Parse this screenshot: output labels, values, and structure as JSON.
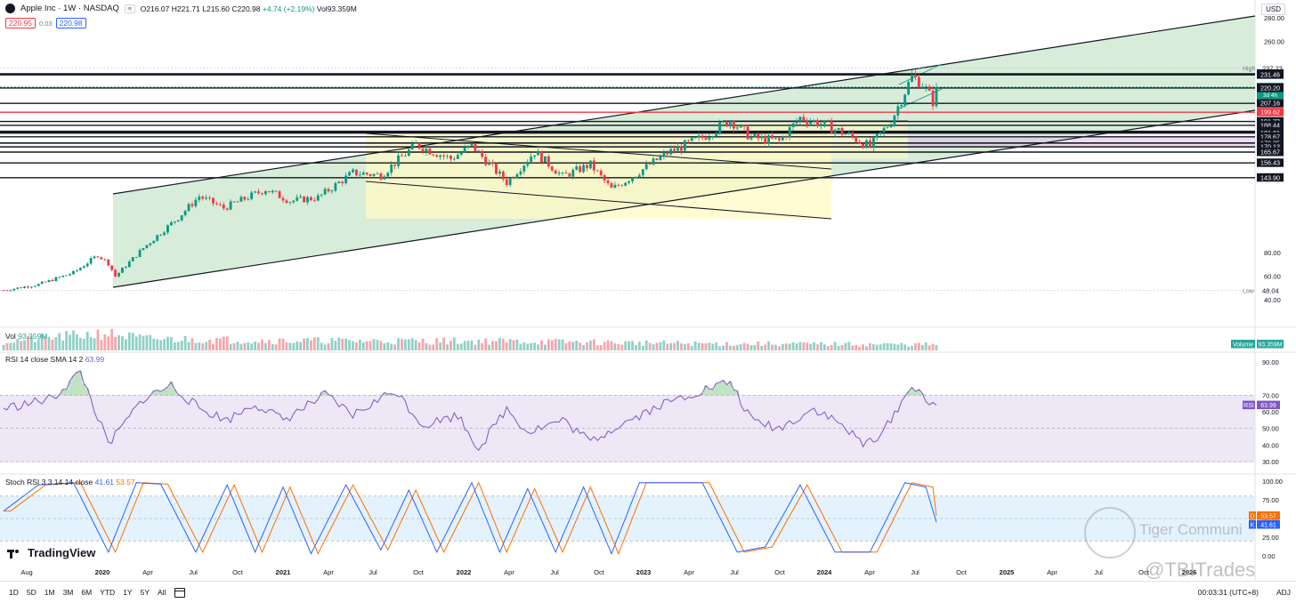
{
  "header": {
    "symbol_title": "Apple Inc · 1W · NASDAQ",
    "badge": "≋",
    "ohlc": {
      "open": "O216.07",
      "high": "H221.71",
      "low": "L215.60",
      "close": "C220.98",
      "change": "+4.74 (+2.19%)",
      "volume": "Vol93.359M"
    },
    "bid": "220.95",
    "spread": "0.03",
    "ask": "220.98",
    "currency": "USD"
  },
  "indicators": {
    "vol": {
      "label": "Vol",
      "value": "93.359M",
      "axis_tag": "Volume",
      "axis_value": "93.359M"
    },
    "rsi": {
      "label": "RSI 14 close SMA 14 2",
      "value": "63.99",
      "axis_tag": "RSI",
      "axis_value": "63.99"
    },
    "stoch": {
      "label": "Stoch RSI 3 3 14 14 close",
      "k": "41.61",
      "d": "53.57",
      "axis_k_tag": "K",
      "axis_d_tag": "D",
      "axis_k": "41.61",
      "axis_d": "53.57"
    }
  },
  "branding": {
    "name": "TradingView"
  },
  "watermark": {
    "community": "Tiger Communi",
    "handle": "@TBITrades"
  },
  "bottom_bar": {
    "ranges": [
      "1D",
      "5D",
      "1M",
      "3M",
      "6M",
      "YTD",
      "1Y",
      "5Y",
      "All"
    ],
    "clock": "00:03:31 (UTC+8)",
    "adj": "ADJ"
  },
  "colors": {
    "up": "#089981",
    "down": "#f23645",
    "green_zone": "#c8e6c9",
    "yellow_zone": "#fff9c4",
    "rsi_line": "#7e57c2",
    "stoch_k": "#2962ff",
    "stoch_d": "#ff6d00"
  },
  "chart_data": {
    "type": "candlestick",
    "timeframe": "1W",
    "x_ticks": [
      "Aug",
      "2020",
      "Apr",
      "Jul",
      "Oct",
      "2021",
      "Apr",
      "Jul",
      "Oct",
      "2022",
      "Apr",
      "Jul",
      "Oct",
      "2023",
      "Apr",
      "Jul",
      "Oct",
      "2024",
      "Apr",
      "Jul",
      "Oct",
      "2025",
      "Apr",
      "Jul",
      "Oct",
      "2026"
    ],
    "price_ticks": [
      280,
      260,
      80,
      60,
      40
    ],
    "price_labels": [
      {
        "value": 237.23,
        "text": "237.23",
        "style": "plain",
        "tag": "High"
      },
      {
        "value": 232.33,
        "text": "232.33",
        "style": "dark"
      },
      {
        "value": 231.46,
        "text": "231.46",
        "style": "dark"
      },
      {
        "value": 220.98,
        "text": "220.98",
        "style": "green",
        "sub": "3d 4h"
      },
      {
        "value": 220.2,
        "text": "220.20",
        "style": "dark"
      },
      {
        "value": 207.16,
        "text": "207.16",
        "style": "dark"
      },
      {
        "value": 199.62,
        "text": "199.62",
        "style": "red"
      },
      {
        "value": 191.73,
        "text": "191.73",
        "style": "dark"
      },
      {
        "value": 188.44,
        "text": "188.44",
        "style": "dark"
      },
      {
        "value": 183.43,
        "text": "183.43",
        "style": "dark"
      },
      {
        "value": 183.09,
        "text": "183.09",
        "style": "dark"
      },
      {
        "value": 182.66,
        "text": "182.66",
        "style": "dark"
      },
      {
        "value": 181.81,
        "text": "181.81",
        "style": "dark"
      },
      {
        "value": 178.67,
        "text": "178.67",
        "style": "dark"
      },
      {
        "value": 173.42,
        "text": "173.42",
        "style": "dark"
      },
      {
        "value": 173.35,
        "text": "173.35",
        "style": "dark"
      },
      {
        "value": 170.12,
        "text": "170.12",
        "style": "dark"
      },
      {
        "value": 165.67,
        "text": "165.67",
        "style": "dark"
      },
      {
        "value": 156.43,
        "text": "156.43",
        "style": "dark"
      },
      {
        "value": 143.9,
        "text": "143.90",
        "style": "dark"
      },
      {
        "value": 48.04,
        "text": "48.04",
        "style": "plain",
        "tag": "Low"
      }
    ],
    "price_anchors": [
      {
        "date_index": 0,
        "close": 48
      },
      {
        "date_index": 10,
        "close": 53
      },
      {
        "date_index": 20,
        "close": 63
      },
      {
        "date_index": 27,
        "close": 78
      },
      {
        "date_index": 30,
        "close": 71
      },
      {
        "date_index": 32,
        "close": 60
      },
      {
        "date_index": 40,
        "close": 84
      },
      {
        "date_index": 50,
        "close": 110
      },
      {
        "date_index": 56,
        "close": 128
      },
      {
        "date_index": 63,
        "close": 118
      },
      {
        "date_index": 75,
        "close": 134
      },
      {
        "date_index": 82,
        "close": 124
      },
      {
        "date_index": 90,
        "close": 127
      },
      {
        "date_index": 100,
        "close": 148
      },
      {
        "date_index": 108,
        "close": 146
      },
      {
        "date_index": 118,
        "close": 172
      },
      {
        "date_index": 128,
        "close": 160
      },
      {
        "date_index": 134,
        "close": 171
      },
      {
        "date_index": 144,
        "close": 140
      },
      {
        "date_index": 152,
        "close": 166
      },
      {
        "date_index": 160,
        "close": 145
      },
      {
        "date_index": 168,
        "close": 155
      },
      {
        "date_index": 174,
        "close": 134
      },
      {
        "date_index": 180,
        "close": 145
      },
      {
        "date_index": 190,
        "close": 165
      },
      {
        "date_index": 200,
        "close": 178
      },
      {
        "date_index": 208,
        "close": 193
      },
      {
        "date_index": 214,
        "close": 178
      },
      {
        "date_index": 222,
        "close": 175
      },
      {
        "date_index": 228,
        "close": 195
      },
      {
        "date_index": 234,
        "close": 190
      },
      {
        "date_index": 242,
        "close": 180
      },
      {
        "date_index": 248,
        "close": 170
      },
      {
        "date_index": 254,
        "close": 192
      },
      {
        "date_index": 260,
        "close": 230
      },
      {
        "date_index": 263,
        "close": 224
      },
      {
        "date_index": 266,
        "close": 209
      },
      {
        "date_index": 267,
        "close": 220.98
      }
    ],
    "volume_anchors": [
      {
        "date_index": 0,
        "value": 45
      },
      {
        "date_index": 30,
        "value": 90
      },
      {
        "date_index": 40,
        "value": 60
      },
      {
        "date_index": 80,
        "value": 50
      },
      {
        "date_index": 140,
        "value": 48
      },
      {
        "date_index": 200,
        "value": 35
      },
      {
        "date_index": 267,
        "value": 30
      }
    ],
    "rsi_anchors": [
      {
        "date_index": 0,
        "value": 62
      },
      {
        "date_index": 14,
        "value": 68
      },
      {
        "date_index": 22,
        "value": 84
      },
      {
        "date_index": 30,
        "value": 40
      },
      {
        "date_index": 40,
        "value": 68
      },
      {
        "date_index": 48,
        "value": 76
      },
      {
        "date_index": 56,
        "value": 62
      },
      {
        "date_index": 64,
        "value": 55
      },
      {
        "date_index": 72,
        "value": 65
      },
      {
        "date_index": 80,
        "value": 55
      },
      {
        "date_index": 92,
        "value": 70
      },
      {
        "date_index": 100,
        "value": 58
      },
      {
        "date_index": 112,
        "value": 73
      },
      {
        "date_index": 120,
        "value": 52
      },
      {
        "date_index": 130,
        "value": 58
      },
      {
        "date_index": 136,
        "value": 38
      },
      {
        "date_index": 144,
        "value": 62
      },
      {
        "date_index": 150,
        "value": 48
      },
      {
        "date_index": 160,
        "value": 55
      },
      {
        "date_index": 168,
        "value": 42
      },
      {
        "date_index": 176,
        "value": 52
      },
      {
        "date_index": 188,
        "value": 64
      },
      {
        "date_index": 200,
        "value": 73
      },
      {
        "date_index": 208,
        "value": 78
      },
      {
        "date_index": 214,
        "value": 55
      },
      {
        "date_index": 222,
        "value": 50
      },
      {
        "date_index": 232,
        "value": 62
      },
      {
        "date_index": 240,
        "value": 52
      },
      {
        "date_index": 246,
        "value": 40
      },
      {
        "date_index": 252,
        "value": 48
      },
      {
        "date_index": 258,
        "value": 70
      },
      {
        "date_index": 262,
        "value": 76
      },
      {
        "date_index": 265,
        "value": 62
      },
      {
        "date_index": 267,
        "value": 63.99
      }
    ],
    "rsi_ticks": [
      90,
      70,
      60,
      50,
      40,
      30
    ],
    "stoch_ticks": [
      100,
      75,
      50,
      25,
      0
    ],
    "stoch_cycle_pivots": [
      {
        "date_index": 0,
        "value": 60
      },
      {
        "date_index": 10,
        "value": 95
      },
      {
        "date_index": 20,
        "value": 98
      },
      {
        "date_index": 30,
        "value": 5
      },
      {
        "date_index": 38,
        "value": 98
      },
      {
        "date_index": 45,
        "value": 96
      },
      {
        "date_index": 55,
        "value": 5
      },
      {
        "date_index": 64,
        "value": 95
      },
      {
        "date_index": 72,
        "value": 5
      },
      {
        "date_index": 80,
        "value": 92
      },
      {
        "date_index": 88,
        "value": 3
      },
      {
        "date_index": 98,
        "value": 95
      },
      {
        "date_index": 108,
        "value": 8
      },
      {
        "date_index": 116,
        "value": 88
      },
      {
        "date_index": 124,
        "value": 5
      },
      {
        "date_index": 134,
        "value": 98
      },
      {
        "date_index": 142,
        "value": 5
      },
      {
        "date_index": 150,
        "value": 90
      },
      {
        "date_index": 158,
        "value": 5
      },
      {
        "date_index": 166,
        "value": 92
      },
      {
        "date_index": 174,
        "value": 3
      },
      {
        "date_index": 182,
        "value": 98
      },
      {
        "date_index": 200,
        "value": 98
      },
      {
        "date_index": 210,
        "value": 5
      },
      {
        "date_index": 218,
        "value": 12
      },
      {
        "date_index": 228,
        "value": 95
      },
      {
        "date_index": 238,
        "value": 5
      },
      {
        "date_index": 248,
        "value": 5
      },
      {
        "date_index": 258,
        "value": 98
      },
      {
        "date_index": 264,
        "value": 92
      },
      {
        "date_index": 267,
        "value": 45
      }
    ]
  }
}
